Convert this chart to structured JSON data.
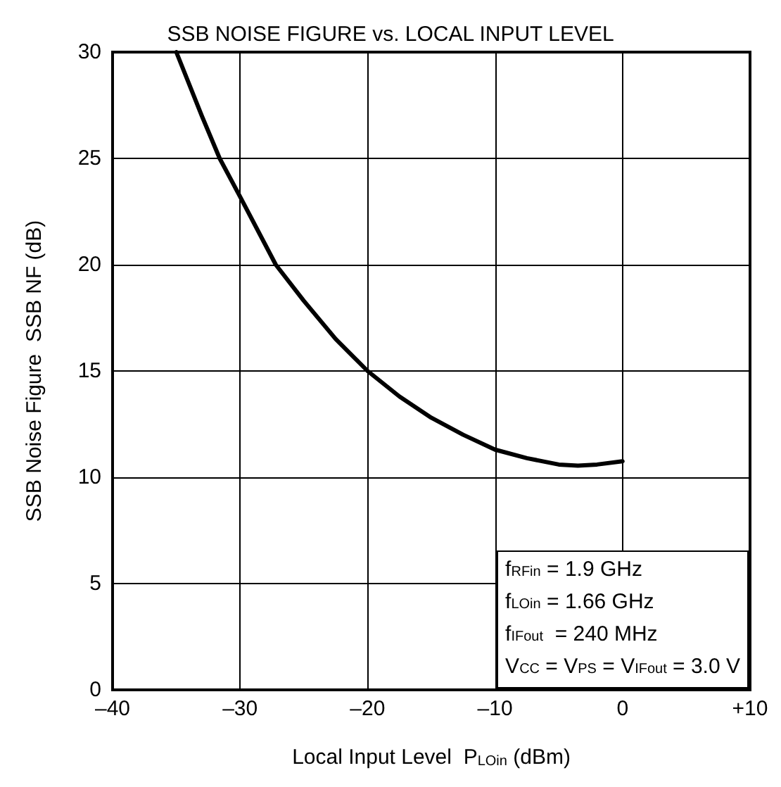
{
  "chart_data": {
    "type": "line",
    "title": "SSB NOISE FIGURE vs. LOCAL INPUT LEVEL",
    "xlabel": "Local Input Level  P$_{LOin}$ (dBm)",
    "ylabel": "SSB Noise Figure  SSB NF (dB)",
    "series": [
      {
        "color": "#000000",
        "x": [
          -35,
          -33,
          -31.6,
          -30,
          -27.2,
          -25,
          -22.5,
          -20,
          -17.5,
          -15,
          -12.5,
          -10,
          -7.5,
          -5,
          -3.5,
          -2,
          0
        ],
        "values": [
          30,
          27,
          25,
          23.2,
          20,
          18.3,
          16.5,
          15,
          13.8,
          12.8,
          12.0,
          11.3,
          10.9,
          10.6,
          10.55,
          10.6,
          10.75
        ]
      }
    ],
    "xlim": [
      -40,
      10
    ],
    "xticks": [
      {
        "value": -40,
        "label": "–40"
      },
      {
        "value": -30,
        "label": "–30"
      },
      {
        "value": -20,
        "label": "–20"
      },
      {
        "value": -10,
        "label": "–10"
      },
      0,
      {
        "value": 10,
        "label": "+10"
      }
    ],
    "ylim": [
      0,
      30
    ],
    "yticks": [
      0,
      5,
      10,
      15,
      20,
      25,
      30
    ],
    "grid": true,
    "marker": "none",
    "line_style": "solid",
    "annotations": [
      "f$_{RFin}$ = 1.9 GHz",
      "f$_{LOin}$ = 1.66 GHz",
      "f$_{IFout}$  = 240 MHz",
      "V$_{CC}$ = V$_{PS}$ = V$_{IFout}$ = 3.0 V"
    ]
  }
}
